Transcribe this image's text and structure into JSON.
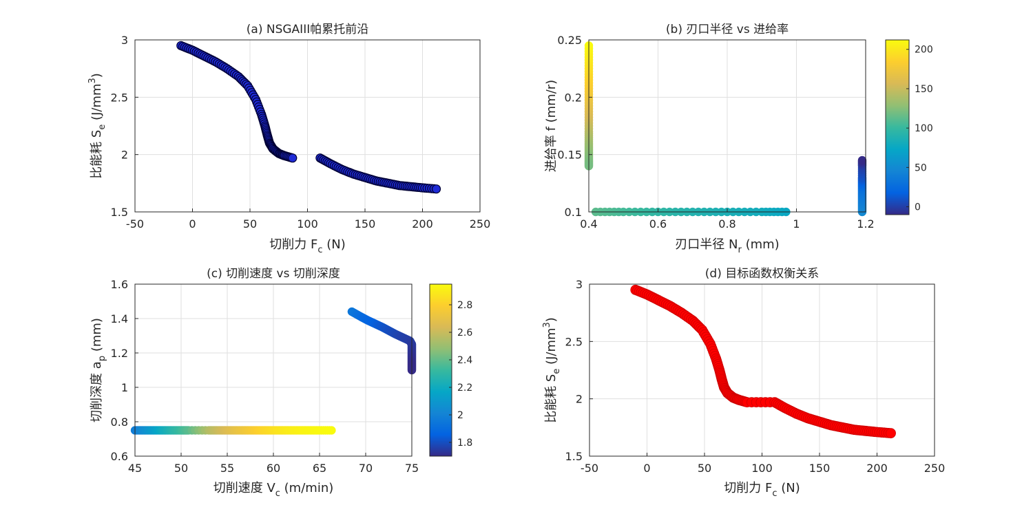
{
  "chart_data": [
    {
      "id": "a",
      "type": "scatter",
      "title": "(a) NSGAIII帕累托前沿",
      "xlabel": {
        "main": "切削力 F",
        "sub": "c",
        "tail": " (N)"
      },
      "ylabel": {
        "main": "比能耗 S",
        "sub": "e",
        "tail": " (J/mm",
        "sup": "3",
        "end": ")"
      },
      "xlim": [
        -50,
        250
      ],
      "ylim": [
        1.5,
        3
      ],
      "xticks": [
        "-50",
        "0",
        "50",
        "100",
        "150",
        "200",
        "250"
      ],
      "yticks": [
        "1.5",
        "2",
        "2.5",
        "3"
      ],
      "grid": true,
      "marker_color": "#1f2bd6",
      "marker_edge": "#000033",
      "series": [
        {
          "name": "frontier_left",
          "x": [
            -10,
            0,
            10,
            20,
            30,
            40,
            48,
            55,
            60,
            63,
            65,
            67,
            70,
            75,
            80,
            87
          ],
          "y": [
            2.95,
            2.91,
            2.86,
            2.81,
            2.75,
            2.68,
            2.6,
            2.48,
            2.35,
            2.25,
            2.17,
            2.1,
            2.05,
            2.01,
            1.99,
            1.97
          ]
        },
        {
          "name": "frontier_right",
          "x": [
            111,
            120,
            130,
            140,
            150,
            160,
            170,
            180,
            190,
            200,
            212
          ],
          "y": [
            1.97,
            1.92,
            1.87,
            1.83,
            1.8,
            1.77,
            1.75,
            1.73,
            1.72,
            1.71,
            1.7
          ]
        }
      ]
    },
    {
      "id": "b",
      "type": "scatter",
      "title": "(b) 刃口半径 vs 进给率",
      "xlabel": {
        "main": "刃口半径 N",
        "sub": "r",
        "tail": " (mm)"
      },
      "ylabel": {
        "main": "进给率 f (mm/r)"
      },
      "xlim": [
        0.4,
        1.2
      ],
      "ylim": [
        0.1,
        0.25
      ],
      "xticks": [
        "0.4",
        "0.6",
        "0.8",
        "1",
        "1.2"
      ],
      "yticks": [
        "0.1",
        "0.15",
        "0.2",
        "0.25"
      ],
      "grid": true,
      "color_by": "切削力 F_c",
      "colorbar": {
        "min": -10,
        "max": 212,
        "ticks": [
          "0",
          "50",
          "100",
          "150",
          "200"
        ]
      },
      "series": [
        {
          "name": "left_column",
          "x": [
            0.4,
            0.4,
            0.4,
            0.4,
            0.4,
            0.4,
            0.4,
            0.4,
            0.4,
            0.4
          ],
          "y": [
            0.245,
            0.23,
            0.215,
            0.2,
            0.185,
            0.17,
            0.16,
            0.152,
            0.145,
            0.14
          ],
          "c": [
            212,
            200,
            188,
            175,
            160,
            145,
            135,
            128,
            123,
            120
          ]
        },
        {
          "name": "bottom_row",
          "x": [
            0.42,
            0.5,
            0.6,
            0.7,
            0.8,
            0.9,
            0.97
          ],
          "y": [
            0.1,
            0.1,
            0.1,
            0.1,
            0.1,
            0.1,
            0.1
          ],
          "c": [
            112,
            105,
            97,
            90,
            85,
            80,
            75
          ]
        },
        {
          "name": "right_column",
          "x": [
            1.19,
            1.19,
            1.19,
            1.19,
            1.19,
            1.19,
            1.19,
            1.19,
            1.19
          ],
          "y": [
            0.1,
            0.105,
            0.11,
            0.115,
            0.12,
            0.125,
            0.13,
            0.14,
            0.145
          ],
          "c": [
            50,
            45,
            40,
            35,
            30,
            20,
            10,
            0,
            -10
          ]
        }
      ]
    },
    {
      "id": "c",
      "type": "scatter",
      "title": "(c) 切削速度 vs 切削深度",
      "xlabel": {
        "main": "切削速度 V",
        "sub": "c",
        "tail": " (m/min)"
      },
      "ylabel": {
        "main": "切削深度 a",
        "sub": "p",
        "tail": " (mm)"
      },
      "xlim": [
        45,
        75
      ],
      "ylim": [
        0.6,
        1.6
      ],
      "xticks": [
        "45",
        "50",
        "55",
        "60",
        "65",
        "70",
        "75"
      ],
      "yticks": [
        "0.6",
        "0.8",
        "1",
        "1.2",
        "1.4",
        "1.6"
      ],
      "grid": true,
      "color_by": "比能耗 S_e",
      "colorbar": {
        "min": 1.7,
        "max": 2.95,
        "ticks": [
          "1.8",
          "2",
          "2.2",
          "2.4",
          "2.6",
          "2.8"
        ]
      },
      "series": [
        {
          "name": "low_depth",
          "x": [
            45,
            46,
            47,
            48,
            49,
            50,
            50.8,
            53,
            54,
            55,
            56,
            57,
            58,
            59,
            60,
            61,
            62,
            63,
            64,
            65,
            66.3
          ],
          "y": [
            0.75,
            0.75,
            0.75,
            0.75,
            0.75,
            0.75,
            0.75,
            0.75,
            0.75,
            0.75,
            0.75,
            0.75,
            0.75,
            0.75,
            0.75,
            0.75,
            0.75,
            0.75,
            0.75,
            0.75,
            0.75
          ],
          "c": [
            1.97,
            2.05,
            2.12,
            2.2,
            2.27,
            2.33,
            2.38,
            2.55,
            2.6,
            2.65,
            2.7,
            2.74,
            2.78,
            2.82,
            2.85,
            2.88,
            2.9,
            2.92,
            2.93,
            2.94,
            2.95
          ]
        },
        {
          "name": "high_depth",
          "x": [
            68.5,
            69.5,
            70.2,
            71,
            71.8,
            72.5,
            73.2,
            74,
            74.8,
            75,
            75,
            75,
            75,
            75,
            75
          ],
          "y": [
            1.44,
            1.41,
            1.39,
            1.37,
            1.35,
            1.33,
            1.31,
            1.29,
            1.27,
            1.25,
            1.22,
            1.19,
            1.16,
            1.13,
            1.1
          ],
          "c": [
            1.95,
            1.9,
            1.87,
            1.85,
            1.82,
            1.8,
            1.78,
            1.76,
            1.75,
            1.74,
            1.73,
            1.72,
            1.71,
            1.7,
            1.7
          ]
        }
      ]
    },
    {
      "id": "d",
      "type": "line",
      "title": "(d) 目标函数权衡关系",
      "xlabel": {
        "main": "切削力 F",
        "sub": "c",
        "tail": " (N)"
      },
      "ylabel": {
        "main": "比能耗 S",
        "sub": "e",
        "tail": " (J/mm",
        "sup": "3",
        "end": ")"
      },
      "xlim": [
        -50,
        250
      ],
      "ylim": [
        1.5,
        3
      ],
      "xticks": [
        "-50",
        "0",
        "50",
        "100",
        "150",
        "200",
        "250"
      ],
      "yticks": [
        "1.5",
        "2",
        "2.5",
        "3"
      ],
      "grid": true,
      "line_color": "#ff0000",
      "series": [
        {
          "name": "tradeoff",
          "x": [
            -10,
            0,
            10,
            20,
            30,
            40,
            48,
            55,
            60,
            63,
            65,
            67,
            70,
            75,
            80,
            87,
            111,
            120,
            130,
            140,
            150,
            160,
            170,
            180,
            190,
            200,
            212
          ],
          "y": [
            2.95,
            2.91,
            2.86,
            2.81,
            2.75,
            2.68,
            2.6,
            2.48,
            2.35,
            2.25,
            2.17,
            2.1,
            2.05,
            2.01,
            1.99,
            1.97,
            1.97,
            1.92,
            1.87,
            1.83,
            1.8,
            1.77,
            1.75,
            1.73,
            1.72,
            1.71,
            1.7
          ]
        }
      ]
    }
  ]
}
